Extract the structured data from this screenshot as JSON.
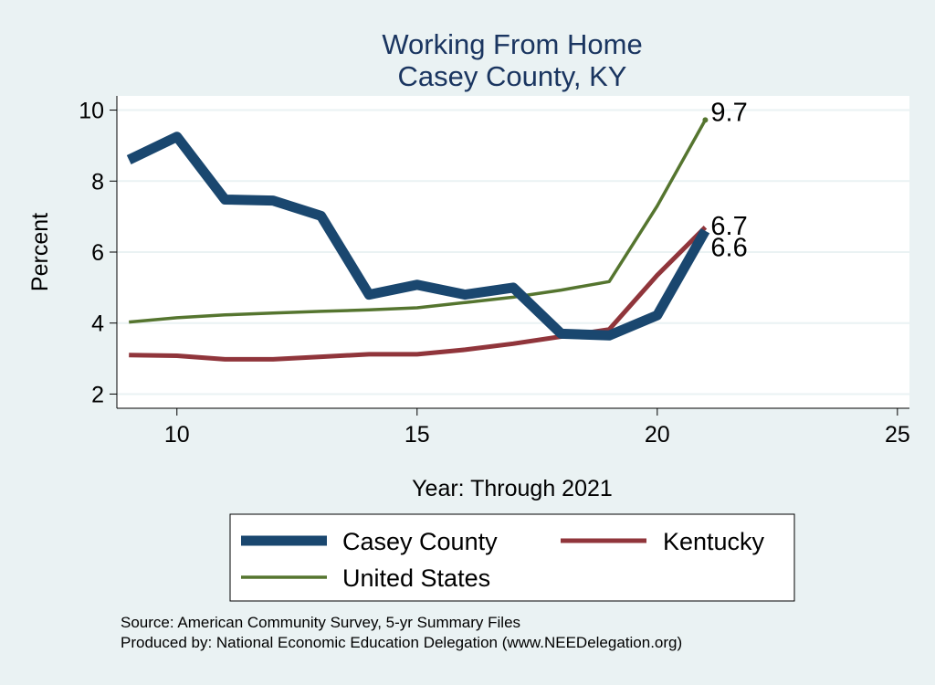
{
  "chart_data": {
    "type": "line",
    "title": "Working From Home",
    "subtitle": "Casey County, KY",
    "xlabel": "Year: Through 2021",
    "ylabel": "Percent",
    "xlim": [
      8.75,
      25.25
    ],
    "ylim": [
      1.6,
      10.4
    ],
    "xticks": [
      10,
      15,
      20,
      25
    ],
    "yticks": [
      2,
      4,
      6,
      8,
      10
    ],
    "grid": true,
    "legend": "bottom",
    "series": [
      {
        "name": "Casey County",
        "color": "#1a476f",
        "x": [
          9,
          10,
          11,
          12,
          13,
          14,
          15,
          16,
          17,
          18,
          19,
          20,
          21
        ],
        "values": [
          8.6,
          9.25,
          7.48,
          7.45,
          7.02,
          4.8,
          5.08,
          4.8,
          5.0,
          3.7,
          3.65,
          4.22,
          6.6
        ],
        "end_label": "6.6"
      },
      {
        "name": "Kentucky",
        "color": "#90353b",
        "x": [
          9,
          10,
          11,
          12,
          13,
          14,
          15,
          16,
          17,
          18,
          19,
          20,
          21
        ],
        "values": [
          3.1,
          3.08,
          2.98,
          2.98,
          3.05,
          3.12,
          3.12,
          3.25,
          3.42,
          3.62,
          3.82,
          5.35,
          6.7
        ],
        "end_label": "6.7"
      },
      {
        "name": "United States",
        "color": "#55752f",
        "x": [
          9,
          10,
          11,
          12,
          13,
          14,
          15,
          16,
          17,
          18,
          19,
          20,
          21
        ],
        "values": [
          4.03,
          4.15,
          4.23,
          4.28,
          4.33,
          4.37,
          4.43,
          4.58,
          4.73,
          4.93,
          5.17,
          7.3,
          9.72
        ],
        "end_label": "9.7"
      }
    ],
    "source_lines": [
      "Source: American Community Survey, 5-yr Summary Files",
      "Produced by: National Economic Education Delegation (www.NEEDelegation.org)"
    ]
  }
}
